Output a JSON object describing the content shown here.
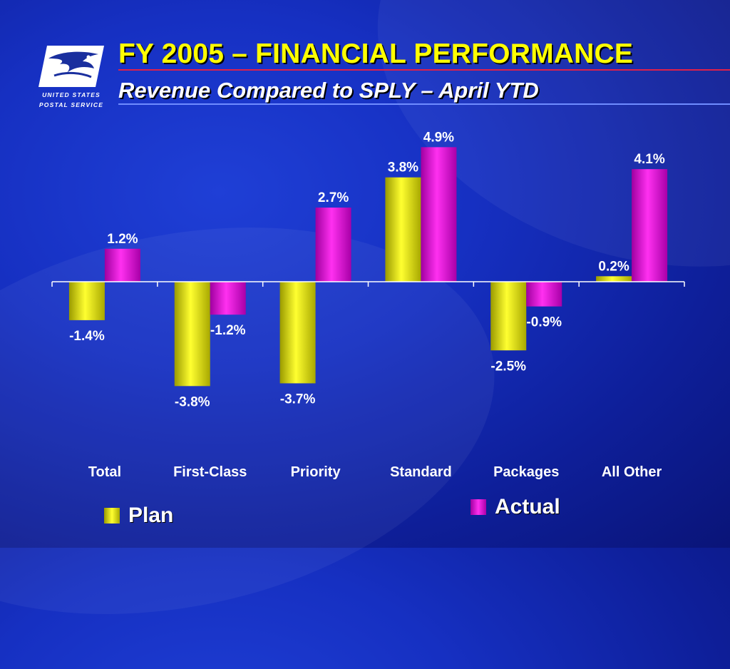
{
  "header": {
    "title": "FY 2005 – FINANCIAL PERFORMANCE",
    "subtitle": "Revenue Compared to SPLY – April YTD"
  },
  "logo": {
    "line1": "UNITED STATES",
    "line2": "POSTAL SERVICE",
    "icon": "eagle-icon"
  },
  "colors": {
    "plan": "#e6e600",
    "actual": "#e010d8",
    "title": "#ffff00"
  },
  "chart_data": {
    "type": "bar",
    "title": "",
    "xlabel": "",
    "ylabel": "",
    "categories": [
      "Total",
      "First-Class",
      "Priority",
      "Standard",
      "Packages",
      "All Other"
    ],
    "series": [
      {
        "name": "Plan",
        "values": [
          -1.4,
          -3.8,
          -3.7,
          3.8,
          -2.5,
          0.2
        ],
        "labels": [
          "-1.4%",
          "-3.8%",
          "-3.7%",
          "3.8%",
          "-2.5%",
          "0.2%"
        ]
      },
      {
        "name": "Actual",
        "values": [
          1.2,
          -1.2,
          2.7,
          4.9,
          -0.9,
          4.1
        ],
        "labels": [
          "1.2%",
          "-1.2%",
          "2.7%",
          "4.9%",
          "-0.9%",
          "4.1%"
        ]
      }
    ],
    "ylim": [
      -5,
      5
    ],
    "grid": false,
    "legend": "bottom"
  }
}
